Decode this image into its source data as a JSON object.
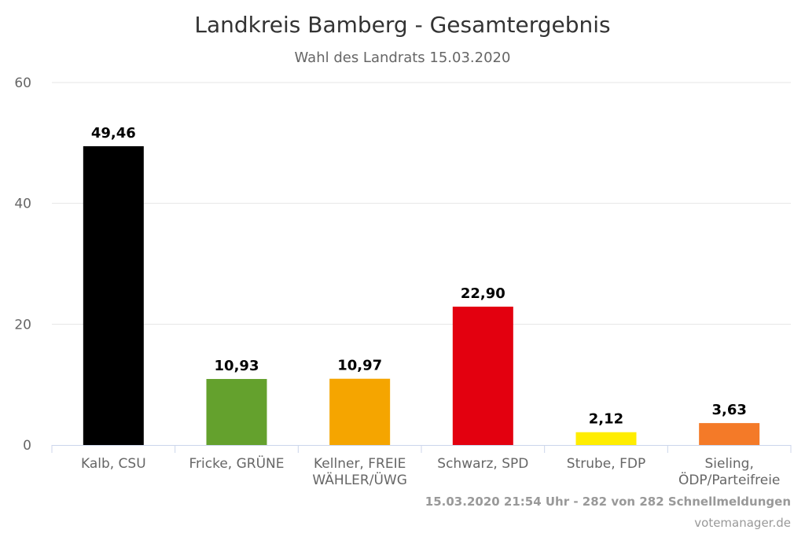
{
  "chart_data": {
    "type": "bar",
    "title": "Landkreis Bamberg - Gesamtergebnis",
    "subtitle": "Wahl des Landrats 15.03.2020",
    "categories": [
      [
        "Kalb, CSU"
      ],
      [
        "Fricke, GRÜNE"
      ],
      [
        "Kellner, FREIE",
        "WÄHLER/ÜWG"
      ],
      [
        "Schwarz, SPD"
      ],
      [
        "Strube, FDP"
      ],
      [
        "Sieling,",
        "ÖDP/Parteifreie"
      ]
    ],
    "values": [
      49.46,
      10.93,
      10.97,
      22.9,
      2.12,
      3.63
    ],
    "value_labels": [
      "49,46",
      "10,93",
      "10,97",
      "22,90",
      "2,12",
      "3,63"
    ],
    "colors": [
      "#000000",
      "#64a12d",
      "#f5a500",
      "#e3000f",
      "#ffed00",
      "#f47a28"
    ],
    "ylim": [
      0,
      60
    ],
    "yticks": [
      0,
      20,
      40,
      60
    ],
    "grid": true,
    "legend": "none",
    "footer_note": "15.03.2020 21:54 Uhr - 282 von 282 Schnellmeldungen",
    "credit": "votemanager.de"
  }
}
